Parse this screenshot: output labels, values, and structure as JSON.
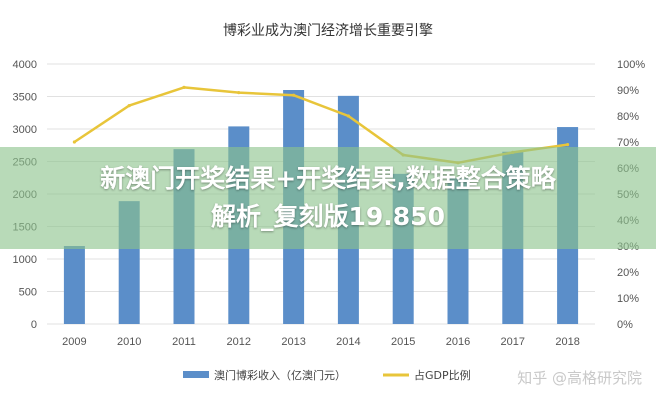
{
  "chart_data": {
    "type": "bar",
    "title": "博彩业成为澳门经济增长重要引擎",
    "categories": [
      "2009",
      "2010",
      "2011",
      "2012",
      "2013",
      "2014",
      "2015",
      "2016",
      "2017",
      "2018"
    ],
    "series": [
      {
        "name": "澳门博彩收入（亿澳门元）",
        "type": "bar",
        "axis": "left",
        "color": "#5b8ec9",
        "values": [
          1200,
          1890,
          2690,
          3040,
          3600,
          3510,
          2310,
          2240,
          2650,
          3030
        ]
      },
      {
        "name": "占GDP比例",
        "type": "line",
        "axis": "right",
        "color": "#e8c53a",
        "values": [
          70,
          84,
          91,
          89,
          88,
          80,
          65,
          62,
          66,
          69
        ]
      }
    ],
    "y_left": {
      "ylim": [
        0,
        4000
      ],
      "ticks": [
        "0",
        "500",
        "1000",
        "1500",
        "2000",
        "2500",
        "3000",
        "3500",
        "4000"
      ]
    },
    "y_right": {
      "ylim": [
        0,
        100
      ],
      "ticks": [
        "0%",
        "10%",
        "20%",
        "30%",
        "40%",
        "50%",
        "60%",
        "70%",
        "80%",
        "90%",
        "100%"
      ]
    },
    "grid": true,
    "legend": "bottom"
  },
  "overlay": {
    "line1": "新澳门开奖结果+开奖结果,数据整合策略",
    "line2": "解析_复刻版19.850"
  },
  "watermark": "知乎 @高格研究院"
}
